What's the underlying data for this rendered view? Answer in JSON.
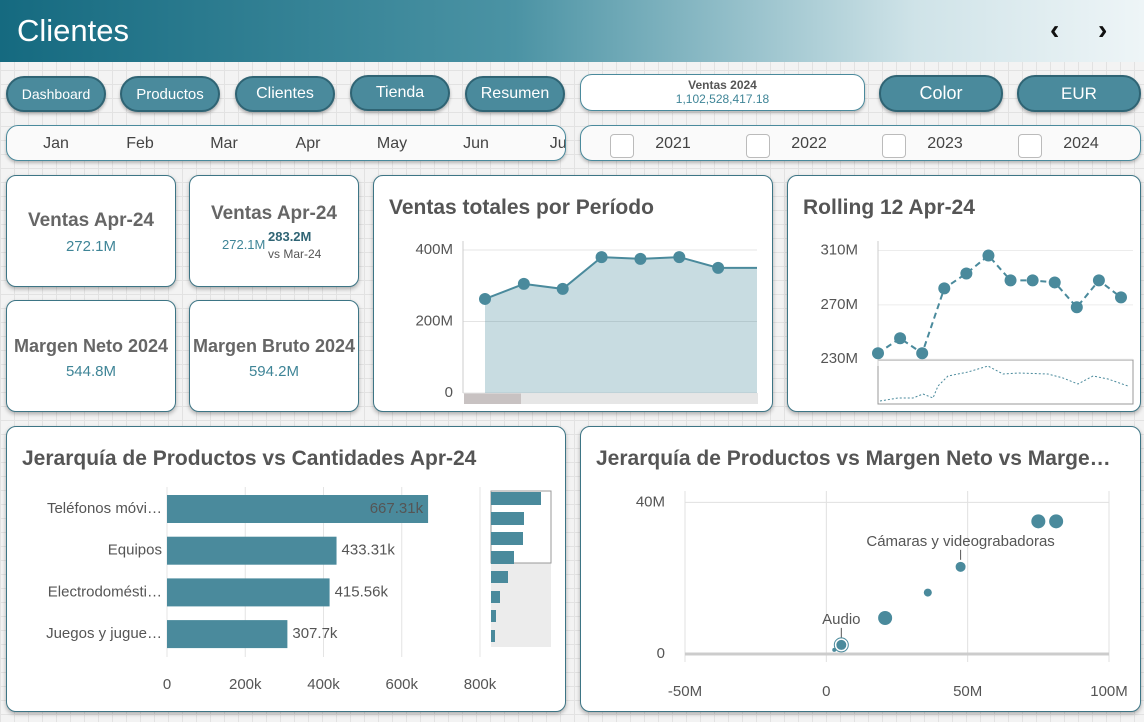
{
  "header": {
    "title": "Clientes"
  },
  "nav": [
    "Dashboard",
    "Productos",
    "Clientes",
    "Tienda",
    "Resumen"
  ],
  "kpi_total": {
    "label": "Ventas 2024",
    "value": "1,102,528,417.18"
  },
  "buttons": [
    "Color",
    "EUR"
  ],
  "months": [
    "Jan",
    "Feb",
    "Mar",
    "Apr",
    "May",
    "Jun",
    "Jul"
  ],
  "years": [
    "2021",
    "2022",
    "2023",
    "2024"
  ],
  "cards": [
    {
      "title": "Ventas Apr-24",
      "value": "272.1M"
    },
    {
      "title": "Ventas Apr-24",
      "value": "272.1M",
      "compare": "283.2M",
      "compare_label": "vs Mar-24"
    },
    {
      "title": "Margen Neto 2024",
      "value": "544.8M"
    },
    {
      "title": "Margen Bruto 2024",
      "value": "594.2M"
    }
  ],
  "charts": [
    {
      "type": "area",
      "title": "Ventas totales por Período",
      "categories": [
        null,
        null,
        null,
        null,
        null,
        null,
        null,
        null
      ],
      "values": [
        263000000,
        305000000,
        291000000,
        380000000,
        375000000,
        380000000,
        350000000,
        350000000
      ],
      "color": "#4a8a9c",
      "ylim": [
        0,
        425000000
      ],
      "yticks": [
        0,
        {
          "value": 200000000,
          "label": "200M"
        },
        {
          "value": 400000000,
          "label": "400M"
        }
      ],
      "grid": true
    },
    {
      "type": "line",
      "title": "Rolling 12 Apr-24",
      "categories": [
        null,
        null,
        null,
        null,
        null,
        null,
        null,
        null,
        null,
        null,
        null,
        null
      ],
      "values": [
        234400000,
        245400000,
        234400000,
        282100000,
        293100000,
        306300000,
        288000000,
        288000000,
        286500000,
        268200000,
        288000000,
        275500000
      ],
      "color": "#4a8a9c",
      "ylim": [
        225000000,
        317000000
      ],
      "yticks": [
        {
          "value": 230000000,
          "label": "230M"
        },
        {
          "value": 270000000,
          "label": "270M"
        },
        {
          "value": 310000000,
          "label": "310M"
        }
      ],
      "grid": true
    },
    {
      "type": "hbar",
      "title": "Jerarquía de Productos vs Cantidades Apr-24",
      "categories": [
        "Teléfonos móvi…",
        "Equipos",
        "Electrodomésti…",
        "Juegos y jugue…"
      ],
      "values": [
        667310,
        433310,
        415560,
        307700
      ],
      "value_labels": [
        "667.31k",
        "433.31k",
        "415.56k",
        "307.7k"
      ],
      "color": "#4a8a9c",
      "xlim": [
        0,
        800000
      ],
      "xticks": [
        0,
        {
          "value": 200000,
          "label": "200k"
        },
        {
          "value": 400000,
          "label": "400k"
        },
        {
          "value": 600000,
          "label": "600k"
        },
        {
          "value": 800000,
          "label": "800k"
        }
      ],
      "grid": true
    },
    {
      "type": "scatter",
      "title": "Jerarquía de Productos vs Margen Neto vs Marge…",
      "x": [
        75000000,
        81300000,
        47500000,
        35900000,
        20800000,
        5300000,
        2800000
      ],
      "values": [
        35000000,
        35000000,
        23000000,
        16200000,
        9500000,
        2400000,
        1100000
      ],
      "sizes": [
        7,
        7,
        5,
        4,
        7,
        5,
        2
      ],
      "point_labels": [
        null,
        null,
        "Cámaras y videograbadoras",
        null,
        null,
        "Audio",
        null
      ],
      "color": "#4a8a9c",
      "xlim": [
        -50000000,
        100000000
      ],
      "ylim": [
        0,
        43000000
      ],
      "xticks": [
        {
          "value": -50000000,
          "label": "-50M"
        },
        0,
        {
          "value": 50000000,
          "label": "50M"
        },
        {
          "value": 100000000,
          "label": "100M"
        }
      ],
      "yticks": [
        0,
        {
          "value": 40000000,
          "label": "40M"
        }
      ],
      "grid": true
    }
  ]
}
